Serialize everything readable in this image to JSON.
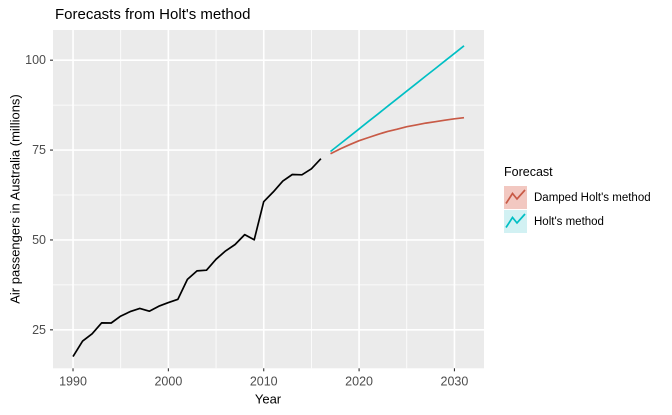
{
  "page": {
    "title": "Forecasts from Holt's method"
  },
  "chart_data": {
    "type": "line",
    "title": "Forecasts from Holt's method",
    "xlabel": "Year",
    "ylabel": "Air passengers in Australia (millions)",
    "x_domain": [
      1987.9,
      2033.1
    ],
    "y_domain": [
      14.3,
      108.4
    ],
    "x_major_ticks": [
      1990,
      2000,
      2010,
      2020,
      2030
    ],
    "x_minor_ticks": [
      1995,
      2005,
      2015,
      2025
    ],
    "y_major_ticks": [
      25,
      50,
      75,
      100
    ],
    "y_minor_ticks": [
      37.5,
      62.5,
      87.5
    ],
    "grid": true,
    "legend_position": "right",
    "panel_bg": "#EBEBEB",
    "grid_color": "#FFFFFF",
    "tick_mark_color": "#333333",
    "tick_label_color": "#4D4D4D",
    "series": [
      {
        "id": "observed",
        "name": "Observed data",
        "color": "#000000",
        "width": 1.7,
        "x_start": 1990,
        "x_step": 1,
        "in_legend": false,
        "values": [
          17.55,
          21.86,
          23.89,
          26.93,
          26.89,
          28.83,
          30.08,
          30.95,
          30.19,
          31.58,
          32.58,
          33.48,
          39.02,
          41.39,
          41.6,
          44.66,
          46.95,
          48.73,
          51.49,
          50.03,
          60.64,
          63.36,
          66.36,
          68.2,
          68.12,
          69.78,
          72.6
        ]
      },
      {
        "id": "damped-holt",
        "name": "Damped Holt's method",
        "color": "#C85A46",
        "key_fill": "#F2C8C1",
        "width": 1.7,
        "x_start": 2017,
        "x_step": 1,
        "in_legend": true,
        "values": [
          74.0,
          75.3,
          76.5,
          77.6,
          78.5,
          79.4,
          80.2,
          80.8,
          81.5,
          82.0,
          82.5,
          82.9,
          83.3,
          83.7,
          84.0
        ]
      },
      {
        "id": "holt",
        "name": "Holt's method",
        "color": "#00BFC4",
        "key_fill": "#D2F1F3",
        "width": 1.7,
        "x_start": 2017,
        "x_step": 1,
        "in_legend": true,
        "values": [
          74.6,
          76.7,
          78.8,
          80.9,
          83.0,
          85.1,
          87.2,
          89.3,
          91.4,
          93.5,
          95.6,
          97.7,
          99.8,
          101.9,
          104.0
        ]
      }
    ],
    "legend": {
      "title": "Forecast",
      "items": [
        {
          "label": "Damped Holt's method",
          "line_color": "#C85A46",
          "fill": "#F2C8C1"
        },
        {
          "label": "Holt's method",
          "line_color": "#00BFC4",
          "fill": "#D2F1F3"
        }
      ]
    }
  }
}
